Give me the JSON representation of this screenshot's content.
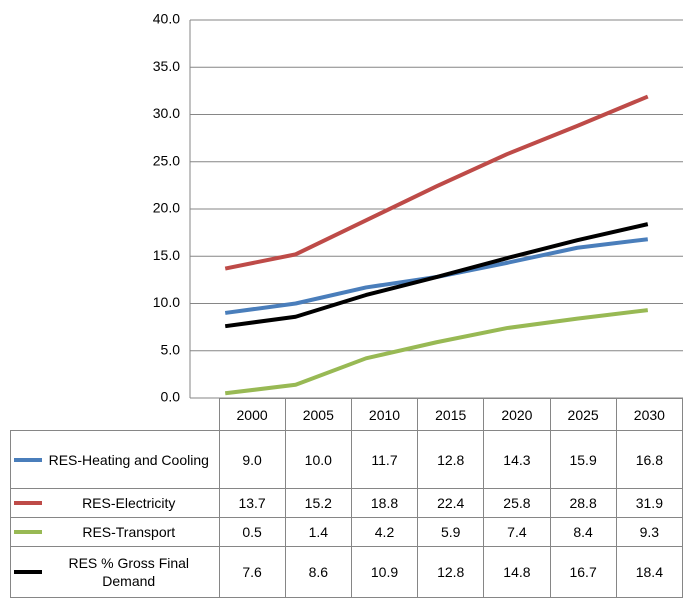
{
  "chart_data": {
    "type": "line",
    "categories": [
      "2000",
      "2005",
      "2010",
      "2015",
      "2020",
      "2025",
      "2030"
    ],
    "series": [
      {
        "name": "RES-Heating and Cooling",
        "color": "#4a7ebb",
        "values": [
          9.0,
          10.0,
          11.7,
          12.8,
          14.3,
          15.9,
          16.8
        ],
        "value_labels": [
          "9.0",
          "10.0",
          "11.7",
          "12.8",
          "14.3",
          "15.9",
          "16.8"
        ]
      },
      {
        "name": "RES-Electricity",
        "color": "#be4b48",
        "values": [
          13.7,
          15.2,
          18.8,
          22.4,
          25.8,
          28.8,
          31.9
        ],
        "value_labels": [
          "13.7",
          "15.2",
          "18.8",
          "22.4",
          "25.8",
          "28.8",
          "31.9"
        ]
      },
      {
        "name": "RES-Transport",
        "color": "#98b954",
        "values": [
          0.5,
          1.4,
          4.2,
          5.9,
          7.4,
          8.4,
          9.3
        ],
        "value_labels": [
          "0.5",
          "1.4",
          "4.2",
          "5.9",
          "7.4",
          "8.4",
          "9.3"
        ]
      },
      {
        "name": "RES % Gross Final Demand",
        "color": "#000000",
        "values": [
          7.6,
          8.6,
          10.9,
          12.8,
          14.8,
          16.7,
          18.4
        ],
        "value_labels": [
          "7.6",
          "8.6",
          "10.9",
          "12.8",
          "14.8",
          "16.7",
          "18.4"
        ]
      }
    ],
    "ylim": [
      0,
      40
    ],
    "yticks": [
      {
        "value": 0,
        "label": "0.0"
      },
      {
        "value": 5,
        "label": "5.0"
      },
      {
        "value": 10,
        "label": "10.0"
      },
      {
        "value": 15,
        "label": "15.0"
      },
      {
        "value": 20,
        "label": "20.0"
      },
      {
        "value": 25,
        "label": "25.0"
      },
      {
        "value": 30,
        "label": "30.0"
      },
      {
        "value": 35,
        "label": "35.0"
      },
      {
        "value": 40,
        "label": "40.0"
      }
    ],
    "grid": true
  }
}
